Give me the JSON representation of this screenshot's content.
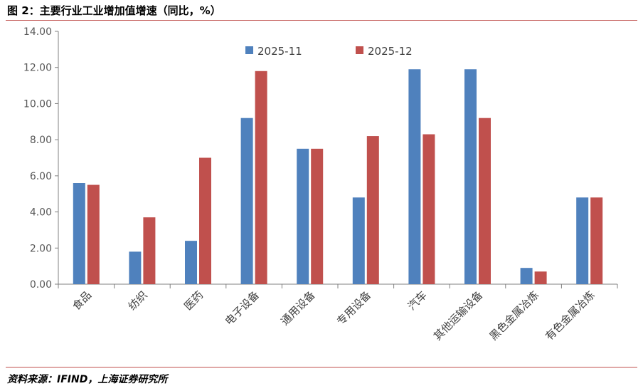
{
  "title": "图 2：主要行业工业增加值增速（同比，%）",
  "source": "资料来源：IFIND，上海证券研究所",
  "chart_data": {
    "type": "bar",
    "categories": [
      "食品",
      "纺织",
      "医药",
      "电子设备",
      "通用设备",
      "专用设备",
      "汽车",
      "其他运输设备",
      "黑色金属冶炼",
      "有色金属冶炼"
    ],
    "series": [
      {
        "name": "2025-11",
        "color": "#4f81bd",
        "values": [
          5.6,
          1.8,
          2.4,
          9.2,
          7.5,
          4.8,
          11.9,
          11.9,
          0.9,
          4.8
        ]
      },
      {
        "name": "2025-12",
        "color": "#c0504d",
        "values": [
          5.5,
          3.7,
          7.0,
          11.8,
          7.5,
          8.2,
          8.3,
          9.2,
          0.7,
          4.8
        ]
      }
    ],
    "ylim": [
      0,
      14
    ],
    "yticks": [
      "0.00",
      "2.00",
      "4.00",
      "6.00",
      "8.00",
      "10.00",
      "12.00",
      "14.00"
    ],
    "grid": false,
    "legend_position": "top-center"
  }
}
